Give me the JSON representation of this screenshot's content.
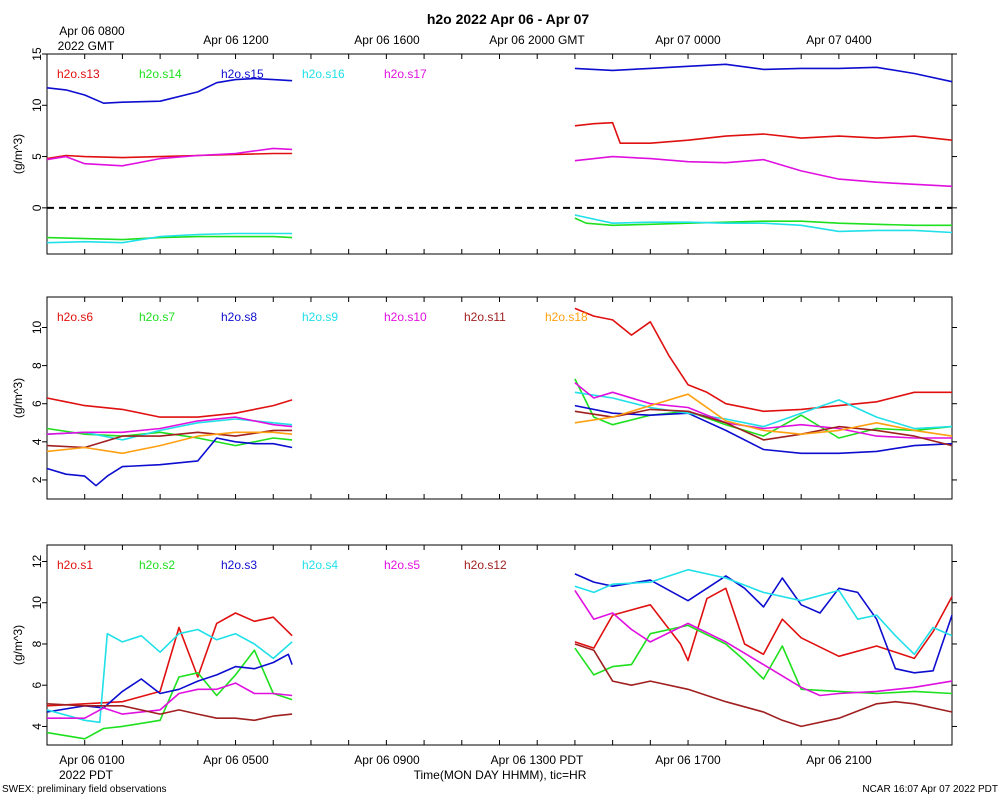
{
  "chart_data": {
    "type": "line",
    "title": "h2o 2022 Apr 06 - Apr 07",
    "top_axis_labels": [
      "Apr 06 0800",
      "Apr 06 1200",
      "Apr 06 1600",
      "Apr 06 2000 GMT",
      "Apr 07 0000",
      "Apr 07 0400"
    ],
    "top_axis_year": "2022 GMT",
    "bottom_axis_labels": [
      "Apr 06 0100",
      "Apr 06 0500",
      "Apr 06 0900",
      "Apr 06 1300 PDT",
      "Apr 06 1700",
      "Apr 06 2100"
    ],
    "bottom_axis_year": "2022 PDT",
    "xlabel": "Time(MON DAY HHMM), tic=HR",
    "footer_left": "SWEX: preliminary field observations",
    "footer_right": "NCAR 16:07 Apr 07 2022 PDT",
    "x_range_hours_pdt": [
      0,
      24
    ],
    "data_gap_hours_pdt": [
      6.5,
      14
    ],
    "panels": [
      {
        "ylabel": "(g/m^3)",
        "ylim": [
          -4.5,
          15
        ],
        "yticks": [
          0,
          5,
          10,
          15
        ],
        "zero_line": true,
        "series": [
          {
            "name": "h2o.s13",
            "color": "#e01010",
            "x": [
              0,
              0.5,
              1,
              2,
              3,
              4,
              5,
              6,
              6.5,
              14,
              14.5,
              15,
              15.2,
              16,
              17,
              18,
              19,
              20,
              21,
              22,
              23,
              24
            ],
            "y": [
              4.8,
              5.1,
              5.0,
              4.9,
              5.0,
              5.1,
              5.2,
              5.3,
              5.3,
              8.0,
              8.2,
              8.3,
              6.3,
              6.3,
              6.6,
              7.0,
              7.2,
              6.8,
              7.0,
              6.8,
              7.0,
              6.6
            ]
          },
          {
            "name": "h2o.s14",
            "color": "#1ee01e",
            "x": [
              0,
              1,
              2,
              3,
              4,
              5,
              6,
              6.5,
              14,
              14.3,
              15,
              16,
              17,
              18,
              19,
              20,
              21,
              22,
              23,
              24
            ],
            "y": [
              -2.9,
              -3.0,
              -3.1,
              -2.9,
              -2.8,
              -2.8,
              -2.8,
              -2.9,
              -1.0,
              -1.5,
              -1.7,
              -1.6,
              -1.5,
              -1.4,
              -1.3,
              -1.3,
              -1.5,
              -1.6,
              -1.7,
              -1.7
            ]
          },
          {
            "name": "h2o.s15",
            "color": "#0d0dd0",
            "x": [
              0,
              0.5,
              1,
              1.5,
              2,
              3,
              4,
              4.5,
              5,
              5.5,
              6,
              6.5,
              14,
              15,
              16,
              17,
              18,
              19,
              20,
              21,
              22,
              23,
              24
            ],
            "y": [
              11.7,
              11.5,
              11.0,
              10.2,
              10.3,
              10.4,
              11.3,
              12.2,
              12.5,
              12.6,
              12.5,
              12.4,
              13.6,
              13.4,
              13.6,
              13.8,
              14.0,
              13.5,
              13.6,
              13.6,
              13.7,
              13.1,
              12.3
            ]
          },
          {
            "name": "h2o.s16",
            "color": "#20e0e8",
            "x": [
              0,
              1,
              2,
              3,
              4,
              5,
              6,
              6.5,
              14,
              15,
              16,
              17,
              18,
              19,
              20,
              21,
              22,
              23,
              24
            ],
            "y": [
              -3.4,
              -3.3,
              -3.4,
              -2.8,
              -2.6,
              -2.5,
              -2.5,
              -2.5,
              -0.7,
              -1.5,
              -1.4,
              -1.4,
              -1.5,
              -1.5,
              -1.7,
              -2.3,
              -2.2,
              -2.2,
              -2.4
            ]
          },
          {
            "name": "h2o.s17",
            "color": "#e010e0",
            "x": [
              0,
              0.5,
              1,
              2,
              3,
              4,
              5,
              6,
              6.5,
              14,
              15,
              16,
              17,
              18,
              19,
              20,
              21,
              22,
              23,
              24
            ],
            "y": [
              4.7,
              5.0,
              4.3,
              4.1,
              4.8,
              5.1,
              5.3,
              5.8,
              5.7,
              4.6,
              5.0,
              4.8,
              4.5,
              4.4,
              4.7,
              3.6,
              2.8,
              2.5,
              2.3,
              2.1
            ]
          }
        ]
      },
      {
        "ylabel": "(g/m^3)",
        "ylim": [
          1,
          11.6
        ],
        "yticks": [
          2,
          4,
          6,
          8,
          10
        ],
        "zero_line": false,
        "series": [
          {
            "name": "h2o.s6",
            "color": "#e01010",
            "x": [
              0,
              0.5,
              1,
              2,
              3,
              4,
              5,
              6,
              6.5,
              14,
              14.5,
              15,
              15.5,
              16,
              16.5,
              17,
              17.5,
              18,
              19,
              20,
              21,
              22,
              23,
              24
            ],
            "y": [
              6.3,
              6.1,
              5.9,
              5.7,
              5.3,
              5.3,
              5.5,
              5.9,
              6.2,
              11.0,
              10.6,
              10.4,
              9.6,
              10.3,
              8.5,
              7.0,
              6.6,
              6.0,
              5.6,
              5.7,
              5.9,
              6.1,
              6.6,
              6.6
            ]
          },
          {
            "name": "h2o.s7",
            "color": "#1ee01e",
            "x": [
              0,
              1,
              2,
              3,
              4,
              5,
              6,
              6.5,
              14,
              14.5,
              15,
              16,
              17,
              18,
              19,
              20,
              21,
              22,
              23,
              24
            ],
            "y": [
              4.7,
              4.4,
              4.3,
              4.5,
              4.2,
              3.8,
              4.2,
              4.1,
              7.3,
              5.3,
              4.9,
              5.4,
              5.6,
              4.9,
              4.3,
              5.4,
              4.2,
              4.7,
              4.6,
              4.8
            ]
          },
          {
            "name": "h2o.s8",
            "color": "#0d0dd0",
            "x": [
              0,
              0.5,
              1,
              1.3,
              1.6,
              2,
              3,
              4,
              4.5,
              5,
              5.5,
              6,
              6.5,
              14,
              15,
              16,
              17,
              18,
              19,
              20,
              21,
              22,
              23,
              24
            ],
            "y": [
              2.6,
              2.3,
              2.2,
              1.7,
              2.2,
              2.7,
              2.8,
              3.0,
              4.2,
              4.0,
              3.9,
              3.9,
              3.7,
              5.9,
              5.5,
              5.4,
              5.5,
              4.6,
              3.6,
              3.4,
              3.4,
              3.5,
              3.8,
              3.9
            ]
          },
          {
            "name": "h2o.s9",
            "color": "#20e0e8",
            "x": [
              0,
              1,
              2,
              3,
              4,
              5,
              6,
              6.5,
              14,
              15,
              16,
              17,
              18,
              19,
              20,
              21,
              22,
              23,
              24
            ],
            "y": [
              4.4,
              4.5,
              4.1,
              4.6,
              5.0,
              5.2,
              5.0,
              4.9,
              6.6,
              6.3,
              5.8,
              5.5,
              5.2,
              4.8,
              5.5,
              6.2,
              5.3,
              4.7,
              4.8
            ]
          },
          {
            "name": "h2o.s10",
            "color": "#e010e0",
            "x": [
              0,
              1,
              2,
              3,
              4,
              5,
              6,
              6.5,
              14,
              14.5,
              15,
              16,
              17,
              18,
              19,
              20,
              21,
              22,
              23,
              24
            ],
            "y": [
              4.4,
              4.5,
              4.5,
              4.7,
              5.1,
              5.3,
              4.9,
              4.8,
              7.1,
              6.3,
              6.6,
              6.0,
              5.8,
              5.0,
              4.7,
              4.9,
              4.7,
              4.3,
              4.2,
              4.2
            ]
          },
          {
            "name": "h2o.s11",
            "color": "#a02020",
            "x": [
              0,
              1,
              2,
              3,
              4,
              5,
              6,
              6.5,
              14,
              15,
              16,
              17,
              18,
              19,
              20,
              21,
              22,
              23,
              24
            ],
            "y": [
              3.8,
              3.7,
              4.3,
              4.3,
              4.5,
              4.3,
              4.6,
              4.6,
              5.6,
              5.3,
              5.7,
              5.6,
              5.0,
              4.1,
              4.4,
              4.8,
              4.6,
              4.3,
              3.8
            ]
          },
          {
            "name": "h2o.s18",
            "color": "#ffa010",
            "x": [
              0,
              1,
              2,
              3,
              4,
              5,
              6,
              6.5,
              14,
              15,
              16,
              17,
              18,
              19,
              20,
              21,
              22,
              23,
              24
            ],
            "y": [
              3.5,
              3.7,
              3.4,
              3.8,
              4.3,
              4.5,
              4.5,
              4.4,
              5.0,
              5.3,
              5.9,
              6.5,
              5.1,
              4.6,
              4.4,
              4.6,
              5.0,
              4.6,
              4.3
            ]
          }
        ]
      },
      {
        "ylabel": "(g/m^3)",
        "ylim": [
          3.1,
          12.8
        ],
        "yticks": [
          4,
          6,
          8,
          10,
          12
        ],
        "zero_line": false,
        "series": [
          {
            "name": "h2o.s1",
            "color": "#e01010",
            "x": [
              0,
              1,
              2,
              3,
              3.5,
              4,
              4.5,
              5,
              5.5,
              6,
              6.5,
              14,
              14.5,
              15,
              16,
              16.8,
              17,
              17.5,
              18,
              18.5,
              19,
              19.5,
              20,
              21,
              22,
              23,
              23.5,
              24
            ],
            "y": [
              5.0,
              5.1,
              5.2,
              5.7,
              8.8,
              6.4,
              9.0,
              9.5,
              9.1,
              9.3,
              8.4,
              8.1,
              7.8,
              9.4,
              9.9,
              8.0,
              7.2,
              10.2,
              10.7,
              8.0,
              7.5,
              9.2,
              8.3,
              7.4,
              7.9,
              7.3,
              8.6,
              10.3
            ]
          },
          {
            "name": "h2o.s2",
            "color": "#1ee01e",
            "x": [
              0,
              1,
              1.5,
              2,
              3,
              3.5,
              4,
              4.5,
              5,
              5.5,
              6,
              6.5,
              14,
              14.5,
              15,
              15.5,
              16,
              17,
              18,
              18.5,
              19,
              19.5,
              20,
              21,
              22,
              23,
              24
            ],
            "y": [
              3.7,
              3.4,
              3.9,
              4.0,
              4.3,
              6.4,
              6.6,
              5.5,
              6.5,
              7.7,
              5.6,
              5.3,
              7.8,
              6.5,
              6.9,
              7.0,
              8.5,
              8.9,
              8.0,
              7.2,
              6.3,
              7.9,
              5.8,
              5.7,
              5.6,
              5.7,
              5.6
            ]
          },
          {
            "name": "h2o.s3",
            "color": "#0d0dd0",
            "x": [
              0,
              1,
              1.5,
              2,
              2.5,
              3,
              3.5,
              4,
              4.5,
              5,
              5.5,
              6,
              6.4,
              6.5,
              14,
              14.5,
              15,
              16,
              17,
              18,
              18.5,
              19,
              19.5,
              20,
              20.5,
              21,
              21.5,
              22,
              22.5,
              23,
              23.5,
              24
            ],
            "y": [
              4.7,
              5.0,
              4.9,
              5.7,
              6.3,
              5.6,
              5.8,
              6.2,
              6.5,
              6.9,
              6.8,
              7.1,
              7.5,
              7.0,
              11.4,
              11.0,
              10.8,
              11.1,
              10.1,
              11.3,
              10.7,
              9.8,
              11.2,
              9.9,
              9.5,
              10.7,
              10.5,
              9.2,
              6.8,
              6.6,
              6.7,
              9.4
            ]
          },
          {
            "name": "h2o.s4",
            "color": "#20e0e8",
            "x": [
              0,
              1,
              1.4,
              1.6,
              2,
              2.5,
              3,
              3.5,
              4,
              4.5,
              5,
              5.5,
              6,
              6.5,
              14,
              14.5,
              15,
              16,
              17,
              18,
              19,
              20,
              21,
              21.5,
              22,
              22.5,
              23,
              23.5,
              24
            ],
            "y": [
              4.8,
              4.3,
              4.2,
              8.5,
              8.1,
              8.4,
              7.6,
              8.5,
              8.7,
              8.2,
              8.5,
              8.0,
              7.3,
              8.1,
              10.8,
              10.5,
              10.9,
              11.0,
              11.6,
              11.2,
              10.5,
              10.1,
              10.6,
              9.2,
              9.4,
              8.4,
              7.5,
              8.8,
              8.4
            ]
          },
          {
            "name": "h2o.s5",
            "color": "#e010e0",
            "x": [
              0,
              1,
              1.5,
              2,
              3,
              3.5,
              4,
              4.5,
              5,
              5.5,
              6,
              6.5,
              14,
              14.5,
              15,
              15.5,
              16,
              17,
              18,
              19,
              20,
              20.5,
              21,
              22,
              23,
              24
            ],
            "y": [
              4.4,
              4.4,
              4.9,
              4.6,
              4.8,
              5.6,
              5.8,
              5.8,
              6.1,
              5.6,
              5.6,
              5.5,
              10.6,
              9.2,
              9.5,
              8.7,
              8.1,
              9.0,
              8.1,
              7.0,
              5.9,
              5.5,
              5.6,
              5.7,
              5.9,
              6.2
            ]
          },
          {
            "name": "h2o.s12",
            "color": "#a02020",
            "x": [
              0,
              1,
              2,
              3,
              3.5,
              4,
              4.5,
              5,
              5.5,
              6,
              6.5,
              14,
              14.5,
              15,
              15.5,
              16,
              17,
              18,
              19,
              19.5,
              20,
              21,
              22,
              22.5,
              23,
              24
            ],
            "y": [
              5.1,
              5.0,
              5.0,
              4.6,
              4.8,
              4.6,
              4.4,
              4.4,
              4.3,
              4.5,
              4.6,
              8.0,
              7.7,
              6.2,
              6.0,
              6.2,
              5.8,
              5.2,
              4.7,
              4.3,
              4.0,
              4.4,
              5.1,
              5.2,
              5.1,
              4.7
            ]
          }
        ]
      }
    ]
  }
}
